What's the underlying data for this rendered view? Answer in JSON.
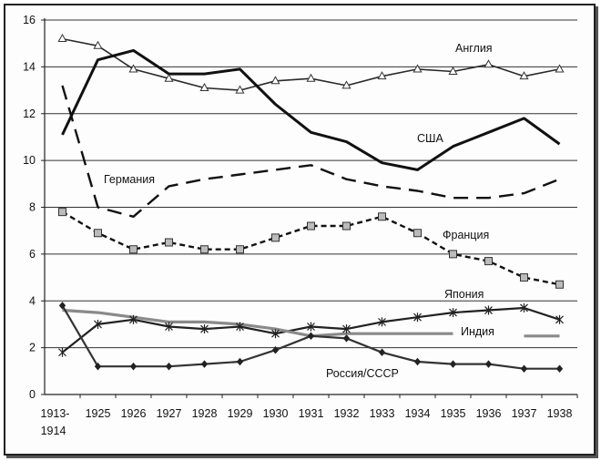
{
  "chart_data": {
    "type": "line",
    "title": "",
    "xlabel": "",
    "ylabel": "",
    "categories": [
      "1913-1914",
      "1925",
      "1926",
      "1927",
      "1928",
      "1929",
      "1930",
      "1931",
      "1932",
      "1933",
      "1934",
      "1935",
      "1936",
      "1937",
      "1938"
    ],
    "ylim": [
      0,
      16
    ],
    "yticks": [
      0,
      2,
      4,
      6,
      8,
      10,
      12,
      14,
      16
    ],
    "grid": true,
    "series": [
      {
        "name": "Англия",
        "style": "line-triangle",
        "color": "#2a2a2a",
        "values": [
          15.2,
          14.9,
          13.9,
          13.5,
          13.1,
          13.0,
          13.4,
          13.5,
          13.2,
          13.6,
          13.9,
          13.8,
          14.1,
          13.6,
          13.9
        ]
      },
      {
        "name": "США",
        "style": "thick-solid",
        "color": "#111111",
        "values": [
          11.1,
          14.3,
          14.7,
          13.7,
          13.7,
          13.9,
          12.4,
          11.2,
          10.8,
          9.9,
          9.6,
          10.6,
          11.2,
          11.8,
          10.7
        ]
      },
      {
        "name": "Германия",
        "style": "long-dash",
        "color": "#111111",
        "values": [
          13.2,
          8.0,
          7.6,
          8.9,
          9.2,
          9.4,
          9.6,
          9.8,
          9.2,
          8.9,
          8.7,
          8.4,
          8.4,
          8.6,
          9.2
        ]
      },
      {
        "name": "Франция",
        "style": "short-dash-square",
        "color": "#111111",
        "values": [
          7.8,
          6.9,
          6.2,
          6.5,
          6.2,
          6.2,
          6.7,
          7.2,
          7.2,
          7.6,
          6.9,
          6.0,
          5.7,
          5.0,
          4.7
        ]
      },
      {
        "name": "Япония",
        "style": "line-star",
        "color": "#222222",
        "values": [
          1.8,
          3.0,
          3.2,
          2.9,
          2.8,
          2.9,
          2.6,
          2.9,
          2.8,
          3.1,
          3.3,
          3.5,
          3.6,
          3.7,
          3.2
        ]
      },
      {
        "name": "Индия",
        "style": "gray-thick",
        "color": "#8a8a8a",
        "values": [
          3.6,
          3.5,
          3.3,
          3.1,
          3.1,
          3.0,
          2.8,
          2.5,
          2.6,
          2.6,
          2.6,
          2.6,
          null,
          2.5,
          2.5
        ]
      },
      {
        "name": "Россия/СССР",
        "style": "line-diamond",
        "color": "#333333",
        "values": [
          3.8,
          1.2,
          1.2,
          1.2,
          1.3,
          1.4,
          1.9,
          2.5,
          2.4,
          1.8,
          1.4,
          1.3,
          1.3,
          1.1,
          1.1
        ]
      }
    ],
    "series_labels": [
      "Англия",
      "США",
      "Германия",
      "Франция",
      "Япония",
      "Индия",
      "Россия/СССР"
    ]
  }
}
